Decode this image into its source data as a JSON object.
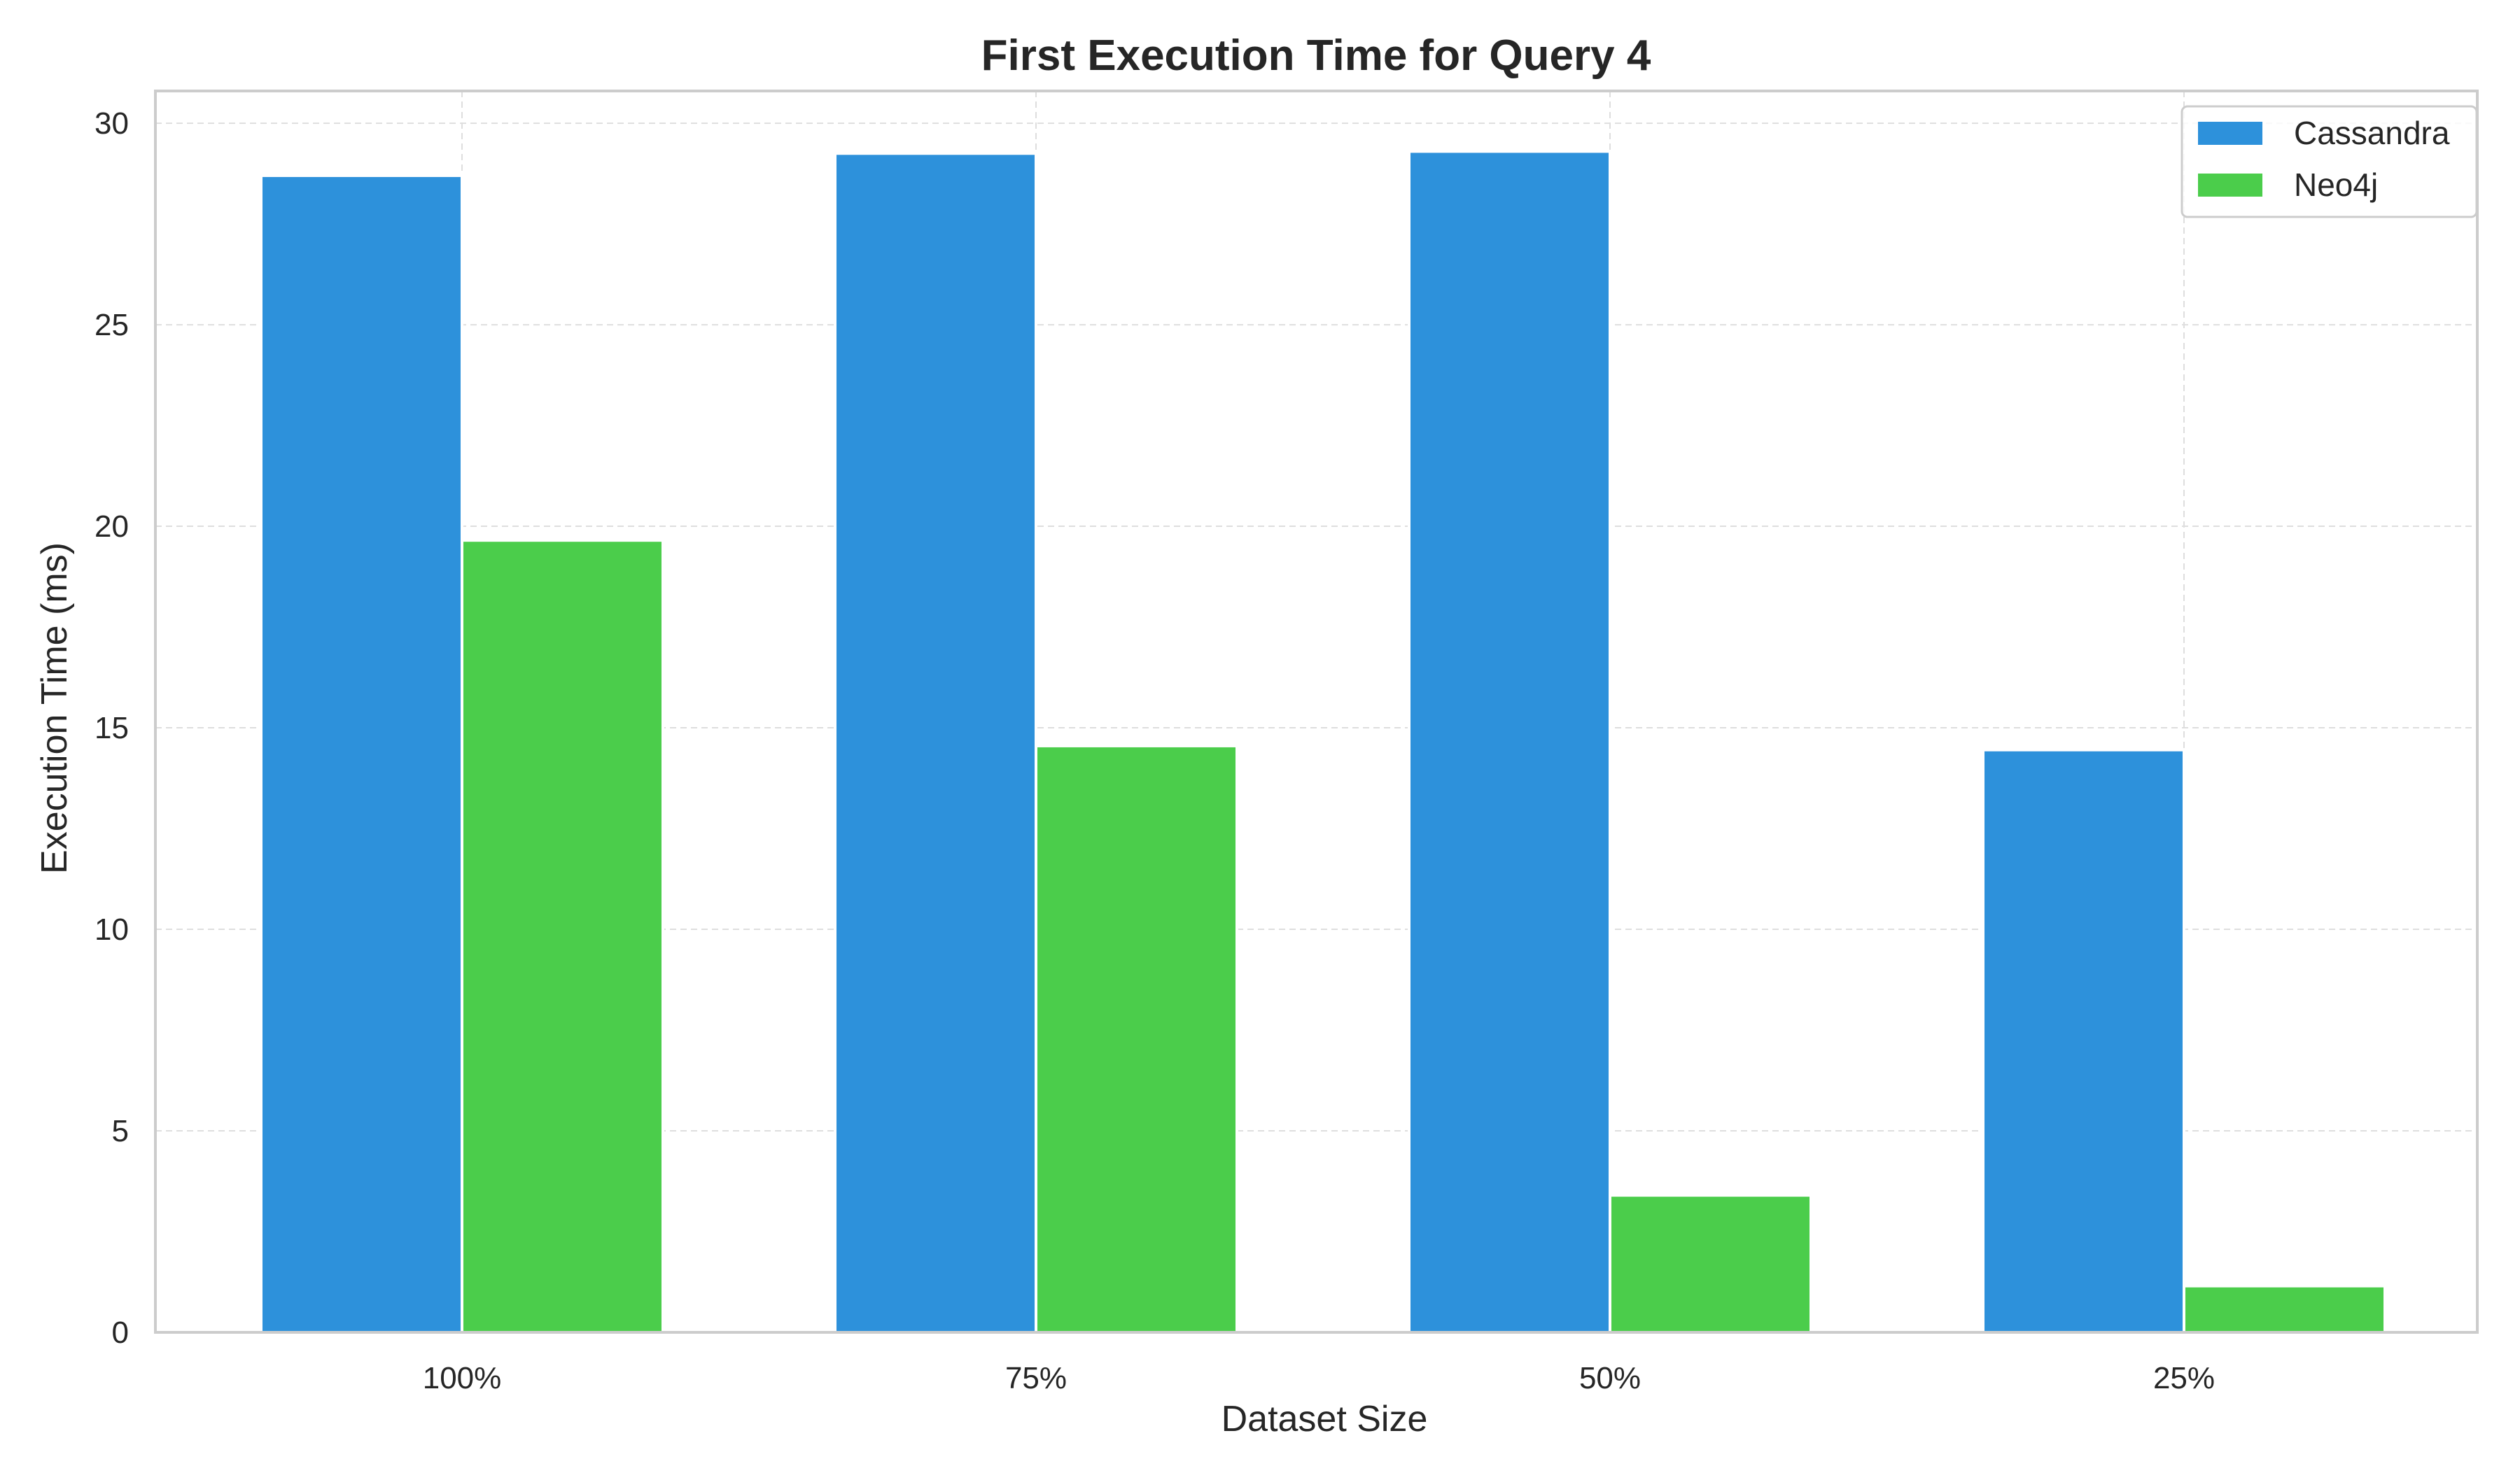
{
  "chart_data": {
    "type": "bar",
    "title": "First Execution Time for Query 4",
    "xlabel": "Dataset Size",
    "ylabel": "Execution Time (ms)",
    "categories": [
      "100%",
      "75%",
      "50%",
      "25%"
    ],
    "series": [
      {
        "name": "Cassandra",
        "color": "#2d91db",
        "values": [
          28.7,
          29.25,
          29.3,
          14.45
        ]
      },
      {
        "name": "Neo4j",
        "color": "#4bcd4b",
        "values": [
          19.65,
          14.55,
          3.4,
          1.15
        ]
      }
    ],
    "ylim": [
      0,
      30.8
    ],
    "yticks": [
      0,
      5,
      10,
      15,
      20,
      25,
      30
    ],
    "grid": true,
    "legend_position": "top-right"
  }
}
